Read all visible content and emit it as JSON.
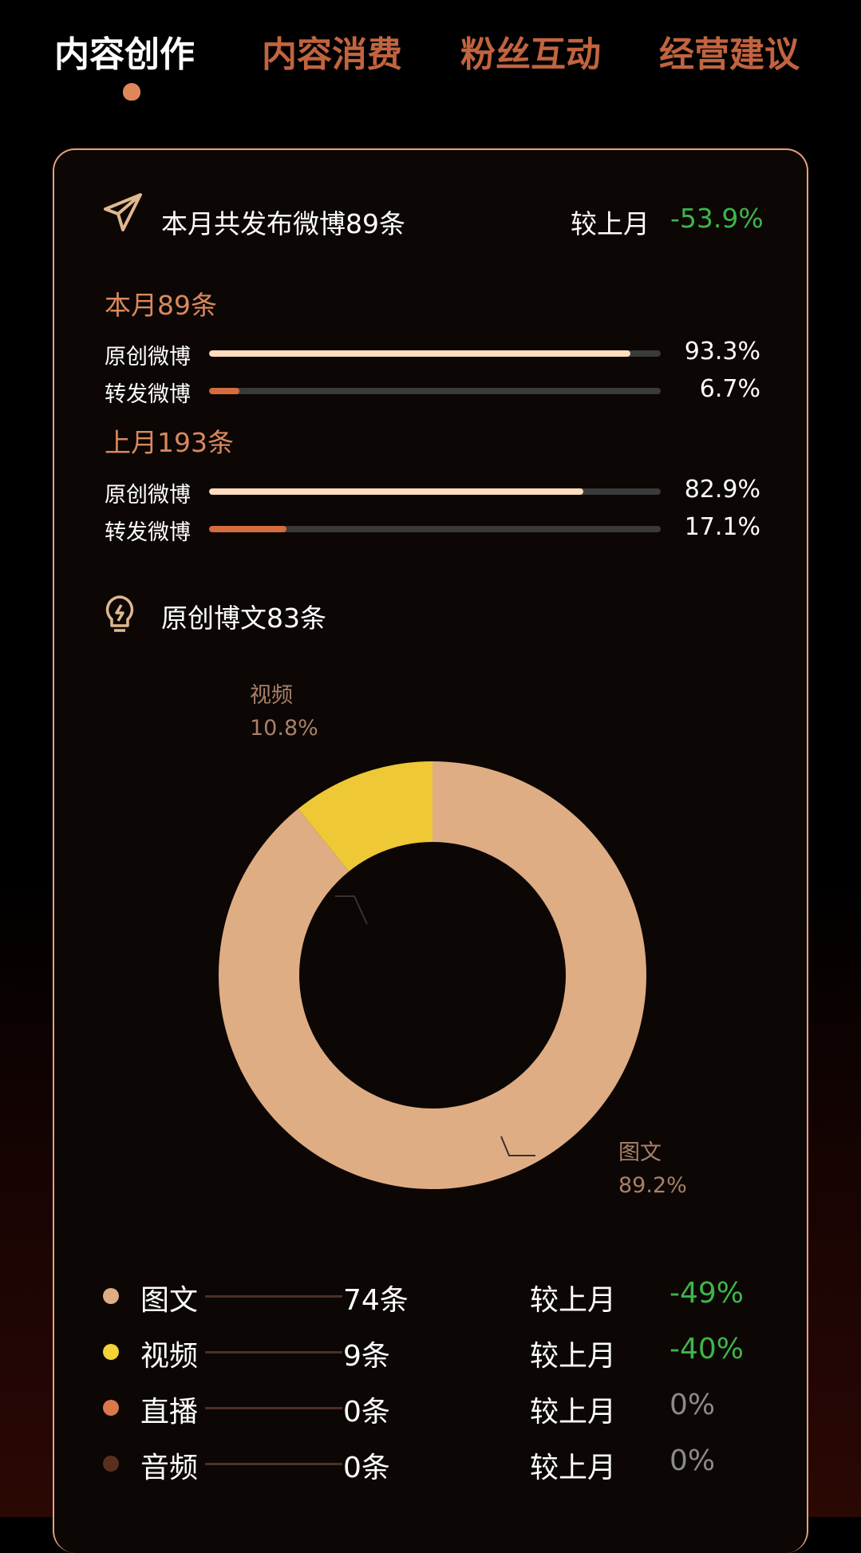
{
  "tabs": [
    {
      "label": "内容创作",
      "active": true
    },
    {
      "label": "内容消费"
    },
    {
      "label": "粉丝互动"
    },
    {
      "label": "经营建议"
    }
  ],
  "summary": {
    "icon": "paper-plane-icon",
    "title": "本月共发布微博89条",
    "compare_label": "较上月",
    "compare_value": "-53.9%"
  },
  "this_month": {
    "title": "本月89条",
    "rows": [
      {
        "label": "原创微博",
        "value": "93.3%",
        "fraction": 0.933,
        "color": "#fddcbf"
      },
      {
        "label": "转发微博",
        "value": "6.7%",
        "fraction": 0.067,
        "color": "#d46c3e"
      }
    ]
  },
  "last_month": {
    "title": "上月193条",
    "rows": [
      {
        "label": "原创微博",
        "value": "82.9%",
        "fraction": 0.829,
        "color": "#fddcbf"
      },
      {
        "label": "转发微博",
        "value": "17.1%",
        "fraction": 0.171,
        "color": "#d46c3e"
      }
    ]
  },
  "original": {
    "icon": "lightbulb-icon",
    "title": "原创博文83条"
  },
  "chart_data": {
    "type": "pie",
    "donut": true,
    "slices": [
      {
        "name": "图文",
        "label": "89.2%",
        "value": 89.2,
        "color": "#dfad84"
      },
      {
        "name": "视频",
        "label": "10.8%",
        "value": 10.8,
        "color": "#eec835"
      }
    ]
  },
  "legend": [
    {
      "name": "图文",
      "count": "74条",
      "compare_label": "较上月",
      "change": "-49%",
      "color": "#dfad84",
      "change_color": "#3db54a"
    },
    {
      "name": "视频",
      "count": "9条",
      "compare_label": "较上月",
      "change": "-40%",
      "color": "#f5d238",
      "change_color": "#3db54a"
    },
    {
      "name": "直播",
      "count": "0条",
      "compare_label": "较上月",
      "change": "0%",
      "color": "#d9784a",
      "change_color": "#8a8a8a"
    },
    {
      "name": "音频",
      "count": "0条",
      "compare_label": "较上月",
      "change": "0%",
      "color": "#5a2f1f",
      "change_color": "#8a8a8a"
    }
  ]
}
